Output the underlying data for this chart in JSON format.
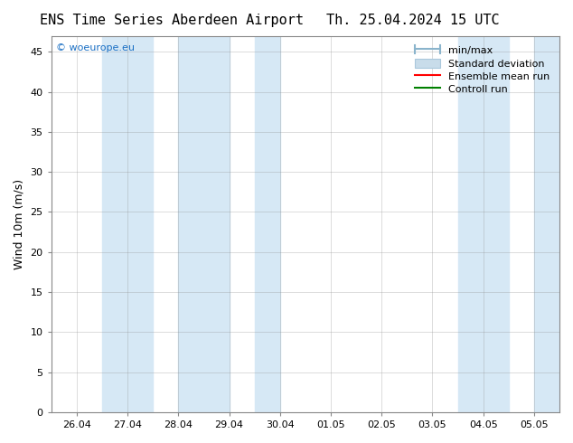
{
  "title_left": "ENS Time Series Aberdeen Airport",
  "title_right": "Th. 25.04.2024 15 UTC",
  "ylabel": "Wind 10m (m/s)",
  "watermark": "© woeurope.eu",
  "x_tick_labels": [
    "26.04",
    "27.04",
    "28.04",
    "29.04",
    "30.04",
    "01.05",
    "02.05",
    "03.05",
    "04.05",
    "05.05"
  ],
  "x_tick_positions": [
    0,
    1,
    2,
    3,
    4,
    5,
    6,
    7,
    8,
    9
  ],
  "ylim": [
    0,
    47
  ],
  "yticks": [
    0,
    5,
    10,
    15,
    20,
    25,
    30,
    35,
    40,
    45
  ],
  "xlim": [
    -0.5,
    9.5
  ],
  "shaded_bands": [
    [
      0.5,
      1.5
    ],
    [
      2.0,
      3.0
    ],
    [
      3.5,
      4.0
    ],
    [
      7.5,
      8.5
    ],
    [
      9.0,
      9.5
    ]
  ],
  "shade_color": "#d6e8f5",
  "background_color": "#ffffff",
  "grid_color": "#888888",
  "legend_items": [
    {
      "label": "min/max",
      "color": "#8ab4cc",
      "type": "errorbar"
    },
    {
      "label": "Standard deviation",
      "color": "#c8dcea",
      "type": "box"
    },
    {
      "label": "Ensemble mean run",
      "color": "#ff0000",
      "type": "line"
    },
    {
      "label": "Controll run",
      "color": "#008000",
      "type": "line"
    }
  ],
  "title_fontsize": 11,
  "tick_fontsize": 8,
  "ylabel_fontsize": 9,
  "legend_fontsize": 8
}
